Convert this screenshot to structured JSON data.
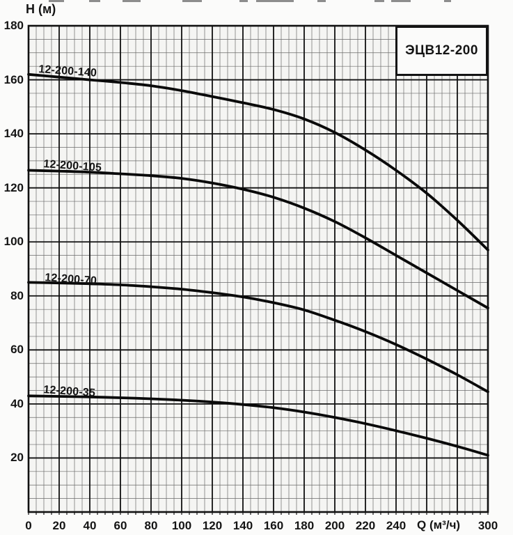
{
  "chart_data": {
    "type": "line",
    "title_box": "ЭЦВ12-200",
    "xlabel": "Q (м³/ч)",
    "ylabel": "H (м)",
    "xlim": [
      0,
      300
    ],
    "ylim": [
      0,
      180
    ],
    "grid": {
      "x_major_step": 20,
      "x_minor_step": 5,
      "y_major_step": 20,
      "y_minor_step": 5,
      "visible": true
    },
    "x_tick_labels": [
      0,
      20,
      40,
      60,
      80,
      100,
      120,
      140,
      160,
      180,
      200,
      220,
      240,
      300
    ],
    "y_tick_labels": [
      20,
      40,
      60,
      80,
      100,
      120,
      140,
      160,
      180
    ],
    "legend_position": "inline-curve-labels",
    "x": [
      0,
      20,
      40,
      60,
      80,
      100,
      120,
      140,
      160,
      180,
      200,
      220,
      240,
      260,
      280,
      300
    ],
    "series": [
      {
        "name": "12-200-140",
        "values": [
          162,
          161,
          160,
          159,
          157.8,
          156,
          153.8,
          151.5,
          149,
          145.5,
          140.5,
          134,
          126.5,
          118,
          108,
          97
        ],
        "label_anchor": {
          "q": 7,
          "h": 166
        }
      },
      {
        "name": "12-200-105",
        "values": [
          126.5,
          126.2,
          125.8,
          125.2,
          124.5,
          123.5,
          121.8,
          119.5,
          116.5,
          112.5,
          107.5,
          101.5,
          95,
          88.5,
          82,
          75.5
        ],
        "label_anchor": {
          "q": 10,
          "h": 131
        }
      },
      {
        "name": "12-200-70",
        "values": [
          85,
          84.8,
          84.5,
          84.1,
          83.4,
          82.5,
          81.2,
          79.6,
          77.5,
          74.8,
          71,
          66.8,
          62,
          56.6,
          50.8,
          44.5
        ],
        "label_anchor": {
          "q": 11,
          "h": 89
        }
      },
      {
        "name": "12-200-35",
        "values": [
          43,
          42.8,
          42.6,
          42.3,
          41.9,
          41.4,
          40.7,
          39.8,
          38.6,
          37,
          35,
          32.7,
          30.1,
          27.3,
          24.3,
          21
        ],
        "label_anchor": {
          "q": 10,
          "h": 47.5
        }
      }
    ],
    "colors": {
      "curve": "#0a0a0a",
      "grid_major": "#101010",
      "grid_minor": "#3c3c3c",
      "border": "#111111",
      "paper": "#f5f5f3"
    }
  }
}
